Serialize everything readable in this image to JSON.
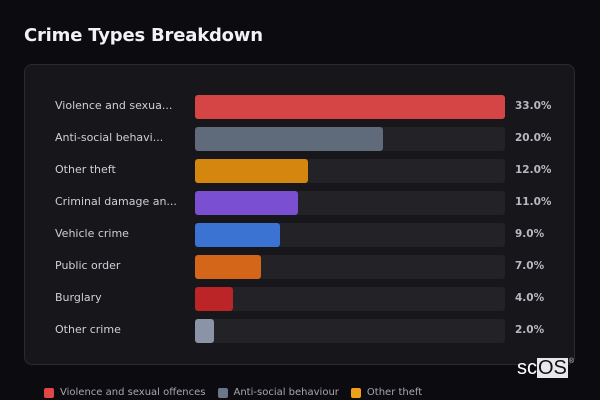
{
  "header": {
    "title": "Crime Types Breakdown"
  },
  "rows": [
    {
      "label": "Violence and sexua...",
      "full_label": "Violence and sexual offences",
      "value": 33.0,
      "value_label": "33.0%",
      "color": "#d64545"
    },
    {
      "label": "Anti-social behavi...",
      "full_label": "Anti-social behaviour",
      "value": 20.0,
      "value_label": "20.0%",
      "color": "#5f6b7a"
    },
    {
      "label": "Other theft",
      "full_label": "Other theft",
      "value": 12.0,
      "value_label": "12.0%",
      "color": "#d4860f"
    },
    {
      "label": "Criminal damage an...",
      "full_label": "Criminal damage and arson",
      "value": 11.0,
      "value_label": "11.0%",
      "color": "#7a4fd1"
    },
    {
      "label": "Vehicle crime",
      "full_label": "Vehicle crime",
      "value": 9.0,
      "value_label": "9.0%",
      "color": "#3a73d1"
    },
    {
      "label": "Public order",
      "full_label": "Public order",
      "value": 7.0,
      "value_label": "7.0%",
      "color": "#d4661a"
    },
    {
      "label": "Burglary",
      "full_label": "Burglary",
      "value": 4.0,
      "value_label": "4.0%",
      "color": "#bb2528"
    },
    {
      "label": "Other crime",
      "full_label": "Other crime",
      "value": 2.0,
      "value_label": "2.0%",
      "color": "#8a94a6"
    }
  ],
  "legend": [
    {
      "label": "Violence and sexual offences",
      "color": "#e04848"
    },
    {
      "label": "Anti-social behaviour",
      "color": "#6b7788"
    },
    {
      "label": "Other theft",
      "color": "#f0a018"
    }
  ],
  "logo": {
    "prefix": "sc",
    "boxed": "OS",
    "reg": "®"
  },
  "chart_data": {
    "type": "bar",
    "orientation": "horizontal",
    "title": "Crime Types Breakdown",
    "categories": [
      "Violence and sexual offences",
      "Anti-social behaviour",
      "Other theft",
      "Criminal damage and arson",
      "Vehicle crime",
      "Public order",
      "Burglary",
      "Other crime"
    ],
    "values": [
      33.0,
      20.0,
      12.0,
      11.0,
      9.0,
      7.0,
      4.0,
      2.0
    ],
    "value_unit": "%",
    "colors": [
      "#d64545",
      "#5f6b7a",
      "#d4860f",
      "#7a4fd1",
      "#3a73d1",
      "#d4661a",
      "#bb2528",
      "#8a94a6"
    ],
    "xlabel": "",
    "ylabel": "",
    "xlim": [
      0,
      33
    ],
    "grid": false,
    "legend_position": "bottom",
    "legend_entries_visible": [
      "Violence and sexual offences",
      "Anti-social behaviour",
      "Other theft"
    ]
  }
}
